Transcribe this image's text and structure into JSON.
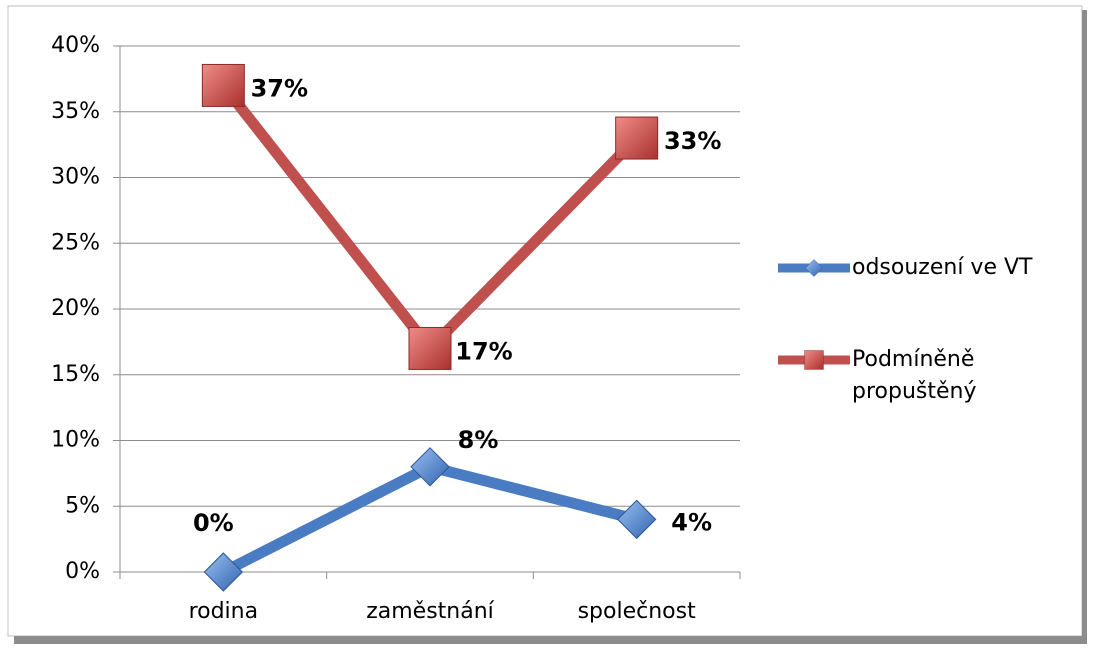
{
  "chart_data": {
    "type": "line",
    "categories": [
      "rodina",
      "zaměstnání",
      "společnost"
    ],
    "series": [
      {
        "name": "odsouzení ve VT",
        "color": "#4a7cc4",
        "marker": "diamond",
        "values": [
          0,
          8,
          4
        ],
        "value_labels": [
          "0%",
          "8%",
          "4%"
        ]
      },
      {
        "name": "Podmíněně propuštěný",
        "color": "#c0504d",
        "marker": "square",
        "values": [
          37,
          17,
          33
        ],
        "value_labels": [
          "37%",
          "17%",
          "33%"
        ]
      }
    ],
    "ylim": [
      0,
      40
    ],
    "yticks": [
      {
        "value": 0,
        "label": "0%"
      },
      {
        "value": 5,
        "label": "5%"
      },
      {
        "value": 10,
        "label": "10%"
      },
      {
        "value": 15,
        "label": "15%"
      },
      {
        "value": 20,
        "label": "20%"
      },
      {
        "value": 25,
        "label": "25%"
      },
      {
        "value": 30,
        "label": "30%"
      },
      {
        "value": 35,
        "label": "35%"
      },
      {
        "value": 40,
        "label": "40%"
      }
    ],
    "grid": true,
    "legend": "right"
  }
}
